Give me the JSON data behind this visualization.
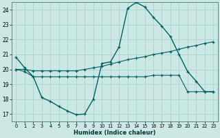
{
  "xlabel": "Humidex (Indice chaleur)",
  "x_ticks": [
    0,
    1,
    2,
    3,
    4,
    5,
    6,
    7,
    8,
    9,
    10,
    11,
    12,
    13,
    14,
    15,
    16,
    17,
    18,
    19,
    20,
    21,
    22,
    23
  ],
  "y_ticks": [
    17,
    18,
    19,
    20,
    21,
    22,
    23,
    24
  ],
  "xlim": [
    -0.5,
    23.5
  ],
  "ylim": [
    16.5,
    24.5
  ],
  "background_color": "#cce8e4",
  "grid_color": "#aad4ce",
  "line_color": "#005f5f",
  "line1_x": [
    0,
    1,
    2,
    3,
    4,
    5,
    6,
    7,
    8,
    9,
    10,
    11,
    12,
    13,
    14,
    15,
    16,
    17,
    18,
    19,
    20,
    21,
    22,
    23
  ],
  "line1_y": [
    20.8,
    20.1,
    19.5,
    18.1,
    17.85,
    17.5,
    17.2,
    16.95,
    17.0,
    18.0,
    20.4,
    20.5,
    21.5,
    24.1,
    24.5,
    24.2,
    23.5,
    22.9,
    22.2,
    21.0,
    19.85,
    19.2,
    18.5,
    18.5
  ],
  "line2_x": [
    0,
    1,
    2,
    3,
    4,
    5,
    6,
    7,
    8,
    9,
    10,
    11,
    12,
    13,
    14,
    15,
    16,
    17,
    18,
    19,
    20,
    21,
    22,
    23
  ],
  "line2_y": [
    20.0,
    20.0,
    19.9,
    19.9,
    19.9,
    19.9,
    19.9,
    19.9,
    20.0,
    20.1,
    20.2,
    20.35,
    20.5,
    20.65,
    20.75,
    20.85,
    21.0,
    21.1,
    21.2,
    21.35,
    21.5,
    21.6,
    21.75,
    21.85
  ],
  "line3_x": [
    0,
    1,
    2,
    3,
    4,
    5,
    6,
    7,
    8,
    9,
    10,
    11,
    12,
    13,
    14,
    15,
    16,
    17,
    18,
    19,
    20,
    21,
    22,
    23
  ],
  "line3_y": [
    20.0,
    19.85,
    19.5,
    19.5,
    19.5,
    19.5,
    19.5,
    19.5,
    19.5,
    19.5,
    19.5,
    19.5,
    19.5,
    19.5,
    19.5,
    19.5,
    19.6,
    19.6,
    19.6,
    19.6,
    18.5,
    18.5,
    18.5,
    18.5
  ]
}
